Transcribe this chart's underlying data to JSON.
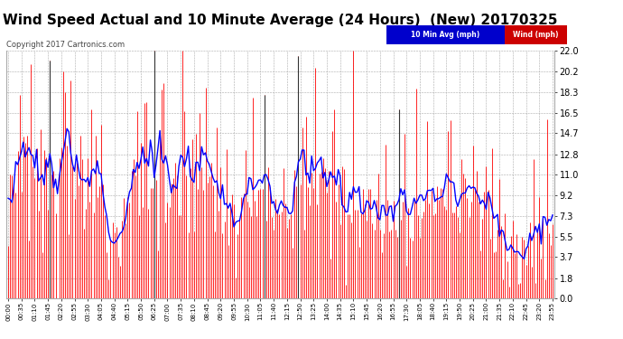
{
  "title": "Wind Speed Actual and 10 Minute Average (24 Hours)  (New) 20170325",
  "copyright_text": "Copyright 2017 Cartronics.com",
  "legend_avg_label": "10 Min Avg (mph)",
  "legend_wind_label": "Wind (mph)",
  "legend_avg_bg": "#0000cc",
  "legend_wind_bg": "#cc0000",
  "yticks": [
    0.0,
    1.8,
    3.7,
    5.5,
    7.3,
    9.2,
    11.0,
    12.8,
    14.7,
    16.5,
    18.3,
    20.2,
    22.0
  ],
  "ymin": 0.0,
  "ymax": 22.0,
  "title_fontsize": 11,
  "background_color": "#ffffff",
  "plot_bg_color": "#ffffff",
  "grid_color": "#aaaaaa",
  "wind_color": "#ff0000",
  "avg_color": "#0000ff",
  "num_points": 288,
  "tick_interval": 7
}
